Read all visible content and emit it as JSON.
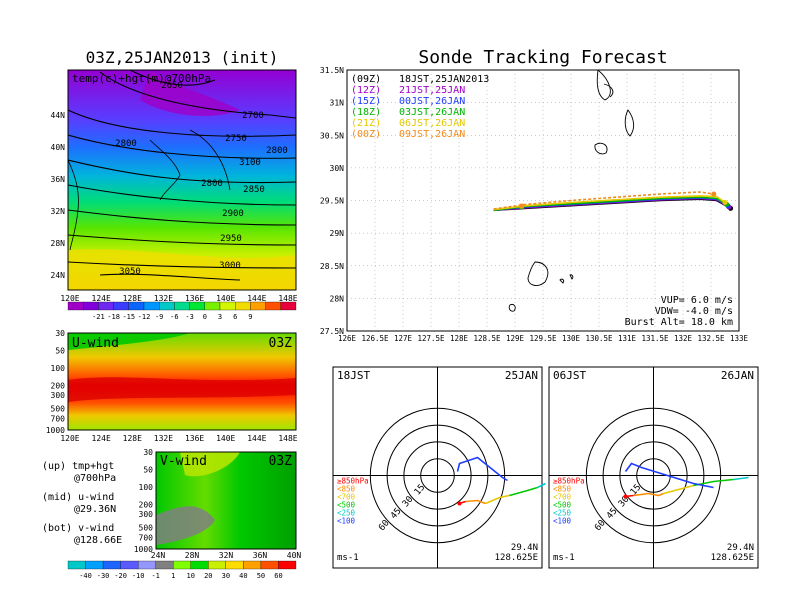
{
  "chart_data": [
    {
      "type": "heatmap",
      "title": "03Z,25JAN2013 (init)",
      "annotation": "temp(c)+hgt(m)@700hPa",
      "x_ticks": [
        "120E",
        "124E",
        "128E",
        "132E",
        "136E",
        "140E",
        "144E",
        "148E"
      ],
      "y_ticks": [
        "24N",
        "28N",
        "32N",
        "36N",
        "40N",
        "44N"
      ],
      "contours": [
        {
          "label": "2650",
          "value": 2650
        },
        {
          "label": "2700",
          "value": 2700
        },
        {
          "label": "2750",
          "value": 2750
        },
        {
          "label": "2800",
          "value": 2800
        },
        {
          "label": "2800",
          "value": 2800
        },
        {
          "label": "2800",
          "value": 2800
        },
        {
          "label": "2850",
          "value": 2850
        },
        {
          "label": "2900",
          "value": 2900
        },
        {
          "label": "2950",
          "value": 2950
        },
        {
          "label": "3000",
          "value": 3000
        },
        {
          "label": "3050",
          "value": 3050
        },
        {
          "label": "3100",
          "value": 3100
        }
      ],
      "colorbar": {
        "labels": [
          "-21",
          "-18",
          "-15",
          "-12",
          "-9",
          "-6",
          "-3",
          "0",
          "3",
          "6",
          "9"
        ],
        "colors": [
          "#a000c8",
          "#8200dc",
          "#6e28f0",
          "#3c3cff",
          "#0a64ff",
          "#0096ff",
          "#00c8c8",
          "#00dc8c",
          "#00e632",
          "#78f000",
          "#d2f500",
          "#f0dc00",
          "#ffa000",
          "#ff5000",
          "#e6003c"
        ]
      }
    },
    {
      "type": "heatmap",
      "title": "U-wind",
      "time": "03Z",
      "x_ticks": [
        "120E",
        "124E",
        "128E",
        "132E",
        "136E",
        "140E",
        "144E",
        "148E"
      ],
      "y_ticks": [
        "30",
        "50",
        "100",
        "200",
        "300",
        "500",
        "700",
        "1000"
      ]
    },
    {
      "type": "heatmap",
      "title": "V-wind",
      "time": "03Z",
      "x_ticks": [
        "24N",
        "28N",
        "32N",
        "36N",
        "40N"
      ],
      "y_ticks": [
        "30",
        "50",
        "100",
        "200",
        "300",
        "500",
        "700",
        "1000"
      ],
      "colorbar": {
        "labels": [
          "-40",
          "-30",
          "-20",
          "-10",
          "-1",
          "1",
          "10",
          "20",
          "30",
          "40",
          "50",
          "60"
        ],
        "colors": [
          "#00c8c8",
          "#00a0ff",
          "#1e64ff",
          "#5a5aff",
          "#9696ff",
          "#808080",
          "#80ff00",
          "#00dc00",
          "#c8f000",
          "#ffdc00",
          "#ffa000",
          "#ff5000",
          "#ff0000"
        ]
      }
    },
    {
      "type": "line",
      "title": "Sonde Tracking Forecast",
      "x_ticks": [
        "126E",
        "126.5E",
        "127E",
        "127.5E",
        "128E",
        "128.5E",
        "129E",
        "129.5E",
        "130E",
        "130.5E",
        "131E",
        "131.5E",
        "132E",
        "132.5E",
        "133E"
      ],
      "y_ticks": [
        "27.5N",
        "28N",
        "28.5N",
        "29N",
        "29.5N",
        "30N",
        "30.5N",
        "31N",
        "31.5N"
      ],
      "xlim": [
        126,
        133
      ],
      "ylim": [
        27.5,
        31.5
      ],
      "grid": true,
      "legend": [
        {
          "code": "(09Z)",
          "text": "18JST,25JAN2013",
          "color": "#000000"
        },
        {
          "code": "(12Z)",
          "text": "21JST,25JAN",
          "color": "#a000c8"
        },
        {
          "code": "(15Z)",
          "text": "00JST,26JAN",
          "color": "#1e3cff"
        },
        {
          "code": "(18Z)",
          "text": "03JST,26JAN",
          "color": "#00b400"
        },
        {
          "code": "(21Z)",
          "text": "06JST,26JAN",
          "color": "#e6c800"
        },
        {
          "code": "(00Z)",
          "text": "09JST,26JAN",
          "color": "#f08c1e"
        }
      ],
      "params": [
        "VUP= 6.0 m/s",
        "VDW= -4.0 m/s",
        "Burst Alt= 18.0 km"
      ],
      "series": [
        {
          "color": "#000000",
          "x": [
            128.62,
            129.2,
            130.0,
            130.8,
            131.6,
            132.3,
            132.6,
            132.85
          ],
          "y": [
            29.35,
            29.38,
            29.42,
            29.46,
            29.5,
            29.52,
            29.5,
            29.38
          ]
        },
        {
          "color": "#a000c8",
          "x": [
            128.62,
            129.2,
            130.0,
            130.8,
            131.6,
            132.3,
            132.6,
            132.82
          ],
          "y": [
            29.35,
            29.39,
            29.43,
            29.47,
            29.51,
            29.53,
            29.51,
            29.4
          ]
        },
        {
          "color": "#1e3cff",
          "x": [
            128.62,
            129.2,
            130.0,
            130.8,
            131.6,
            132.3,
            132.6,
            132.8
          ],
          "y": [
            29.35,
            29.4,
            29.44,
            29.48,
            29.52,
            29.54,
            29.52,
            29.42
          ]
        },
        {
          "color": "#00b400",
          "x": [
            128.62,
            129.2,
            130.0,
            130.8,
            131.6,
            132.3,
            132.6,
            132.78
          ],
          "y": [
            29.35,
            29.41,
            29.45,
            29.49,
            29.53,
            29.55,
            29.53,
            29.44
          ]
        },
        {
          "color": "#e6c800",
          "x": [
            128.62,
            129.2,
            130.0,
            130.8,
            131.6,
            132.3,
            132.6,
            132.75
          ],
          "y": [
            29.36,
            29.42,
            29.47,
            29.51,
            29.55,
            29.57,
            29.56,
            29.47
          ]
        },
        {
          "color": "#f08c1e",
          "x": [
            128.62,
            129.2,
            130.0,
            130.8,
            131.6,
            132.3,
            132.55
          ],
          "y": [
            29.37,
            29.44,
            29.5,
            29.55,
            29.6,
            29.63,
            29.6
          ]
        }
      ]
    },
    {
      "type": "line",
      "time_label": "18JST",
      "date_label": "25JAN",
      "rings": [
        "15",
        "30",
        "45",
        "60"
      ],
      "legend": [
        {
          "text": "≥850hPa",
          "color": "#ff0000"
        },
        {
          "text": "<850",
          "color": "#ff8c00"
        },
        {
          "text": "<700",
          "color": "#e6c800"
        },
        {
          "text": "<500",
          "color": "#00c800"
        },
        {
          "text": "<250",
          "color": "#00c8c8"
        },
        {
          "text": "<100",
          "color": "#1e3cff"
        }
      ],
      "lat_label": "29.4N",
      "lon_label": "128.625E",
      "unit_label": "ms-1"
    },
    {
      "type": "line",
      "time_label": "06JST",
      "date_label": "26JAN",
      "rings": [
        "15",
        "30",
        "45",
        "60"
      ],
      "legend": [
        {
          "text": "≥850hPa",
          "color": "#ff0000"
        },
        {
          "text": "<850",
          "color": "#ff8c00"
        },
        {
          "text": "<700",
          "color": "#e6c800"
        },
        {
          "text": "<500",
          "color": "#00c800"
        },
        {
          "text": "<250",
          "color": "#00c8c8"
        },
        {
          "text": "<100",
          "color": "#1e3cff"
        }
      ],
      "lat_label": "29.4N",
      "lon_label": "128.625E",
      "unit_label": "ms-1"
    }
  ],
  "side_notes": [
    {
      "title": "(up) tmp+hgt",
      "sub": "@700hPa"
    },
    {
      "title": "(mid) u-wind",
      "sub": "@29.36N"
    },
    {
      "title": "(bot) v-wind",
      "sub": "@128.66E"
    }
  ]
}
